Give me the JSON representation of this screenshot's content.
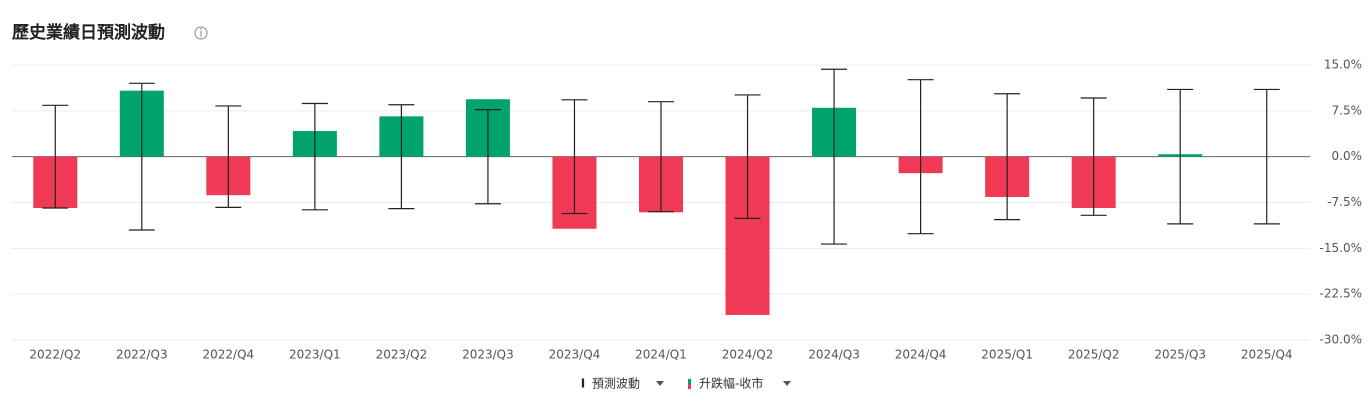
{
  "chart_data": {
    "type": "bar",
    "title": "歷史業績日預測波動",
    "categories": [
      "2022/Q2",
      "2022/Q3",
      "2022/Q4",
      "2023/Q1",
      "2023/Q2",
      "2023/Q3",
      "2023/Q4",
      "2024/Q1",
      "2024/Q2",
      "2024/Q3",
      "2024/Q4",
      "2025/Q1",
      "2025/Q2",
      "2025/Q3",
      "2025/Q4"
    ],
    "series": [
      {
        "name": "預測波動",
        "color": "#222222",
        "values": [
          8.4,
          12.0,
          8.3,
          8.7,
          8.5,
          7.7,
          9.3,
          9.0,
          10.1,
          14.3,
          12.6,
          10.3,
          9.6,
          11.0,
          11.0
        ]
      },
      {
        "name": "升跌幅-收市",
        "up_color": "#00a36c",
        "down_color": "#f03a55",
        "values": [
          -8.4,
          10.8,
          -6.3,
          4.2,
          6.6,
          9.4,
          -11.8,
          -9.1,
          -25.9,
          8.0,
          -2.7,
          -6.6,
          -8.4,
          0.4,
          null
        ]
      }
    ],
    "ylim": [
      -30,
      15
    ],
    "yticks": [
      {
        "value": 15,
        "label": "15.0%"
      },
      {
        "value": 7.5,
        "label": "7.5%"
      },
      {
        "value": 0,
        "label": "0.0%"
      },
      {
        "value": -7.5,
        "label": "-7.5%"
      },
      {
        "value": -15,
        "label": "-15.0%"
      },
      {
        "value": -22.5,
        "label": "-22.5%"
      },
      {
        "value": -30,
        "label": "-30.0%"
      }
    ],
    "grid": true
  }
}
